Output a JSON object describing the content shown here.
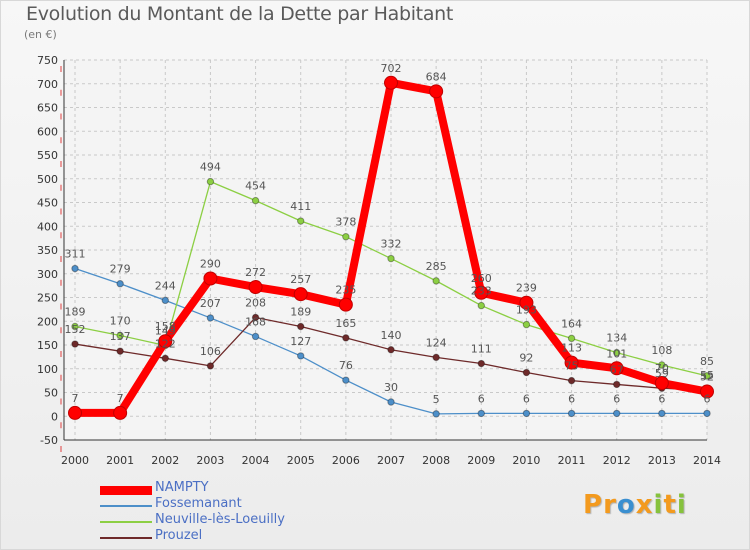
{
  "header": {
    "title": "Evolution du Montant de la Dette par Habitant",
    "subtitle": "(en €)"
  },
  "logo": {
    "letters": [
      "P",
      "r",
      "o",
      "x",
      "i",
      "t",
      "i"
    ],
    "colors": [
      "#f39a1e",
      "#f39a1e",
      "#3a8fd0",
      "#f39a1e",
      "#86c23d",
      "#f39a1e",
      "#86c23d"
    ]
  },
  "chart_data": {
    "type": "line",
    "title": "Evolution du Montant de la Dette par Habitant",
    "subtitle": "(en €)",
    "xlabel": "",
    "ylabel": "",
    "x": [
      "2000",
      "2001",
      "2002",
      "2003",
      "2004",
      "2005",
      "2006",
      "2007",
      "2008",
      "2009",
      "2010",
      "2011",
      "2012",
      "2013",
      "2014"
    ],
    "ylim": [
      -50,
      750
    ],
    "yticks": [
      -50,
      0,
      50,
      100,
      150,
      200,
      250,
      300,
      350,
      400,
      450,
      500,
      550,
      600,
      650,
      700,
      750
    ],
    "grid": true,
    "legend_position": "bottom-left",
    "series": [
      {
        "name": "Fossemanant",
        "color": "#4d8fc9",
        "values": [
          311,
          279,
          244,
          207,
          168,
          127,
          76,
          30,
          5,
          6,
          6,
          6,
          6,
          6,
          6
        ],
        "labels": [
          "311",
          "279",
          "244",
          "207",
          "168",
          "127",
          "76",
          "30",
          "5",
          "6",
          "6",
          "6",
          "6",
          "6",
          "6"
        ]
      },
      {
        "name": "Neuville-lès-Loeuilly",
        "color": "#8ccf43",
        "values": [
          189,
          170,
          149,
          494,
          454,
          411,
          378,
          332,
          285,
          233,
          193,
          164,
          134,
          108,
          85
        ],
        "labels": [
          "189",
          "170",
          "149",
          "494",
          "454",
          "411",
          "378",
          "332",
          "285",
          "233",
          "193",
          "164",
          "134",
          "108",
          "85"
        ]
      },
      {
        "name": "Prouzel",
        "color": "#6e2a2a",
        "values": [
          152,
          137,
          122,
          106,
          208,
          189,
          165,
          140,
          124,
          111,
          92,
          75,
          67,
          59,
          55
        ],
        "labels": [
          "152",
          "137",
          "122",
          "106",
          "208",
          "189",
          "165",
          "140",
          "124",
          "111",
          "92",
          "75",
          "67",
          "59",
          "55"
        ]
      },
      {
        "name": "NAMPTY",
        "color": "#ff0000",
        "values": [
          7,
          7,
          158,
          290,
          272,
          257,
          235,
          702,
          684,
          260,
          239,
          113,
          101,
          70,
          52
        ],
        "labels": [
          "7",
          "7",
          "158",
          "290",
          "272",
          "257",
          "235",
          "702",
          "684",
          "260",
          "239",
          "113",
          "101",
          "70",
          "52"
        ]
      }
    ]
  }
}
